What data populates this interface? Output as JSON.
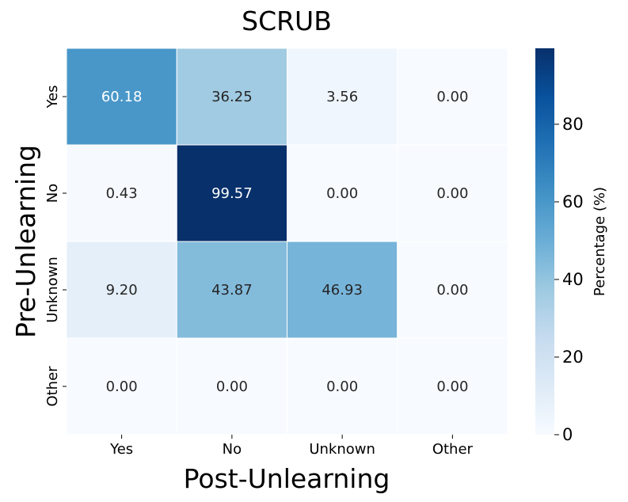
{
  "chart_data": {
    "type": "heatmap",
    "title": "SCRUB",
    "xlabel": "Post-Unlearning",
    "ylabel": "Pre-Unlearning",
    "x_categories": [
      "Yes",
      "No",
      "Unknown",
      "Other"
    ],
    "y_categories": [
      "Yes",
      "No",
      "Unknown",
      "Other"
    ],
    "values": [
      [
        60.18,
        36.25,
        3.56,
        0.0
      ],
      [
        0.43,
        99.57,
        0.0,
        0.0
      ],
      [
        9.2,
        43.87,
        46.93,
        0.0
      ],
      [
        0.0,
        0.0,
        0.0,
        0.0
      ]
    ],
    "value_labels": [
      [
        "60.18",
        "36.25",
        "3.56",
        "0.00"
      ],
      [
        "0.43",
        "99.57",
        "0.00",
        "0.00"
      ],
      [
        "9.20",
        "43.87",
        "46.93",
        "0.00"
      ],
      [
        "0.00",
        "0.00",
        "0.00",
        "0.00"
      ]
    ],
    "colorbar": {
      "label": "Percentage (%)",
      "range": [
        0,
        99.57
      ],
      "ticks": [
        0,
        20,
        40,
        60,
        80
      ],
      "tick_labels": [
        "0",
        "20",
        "40",
        "60",
        "80"
      ],
      "colormap": "Blues"
    }
  }
}
